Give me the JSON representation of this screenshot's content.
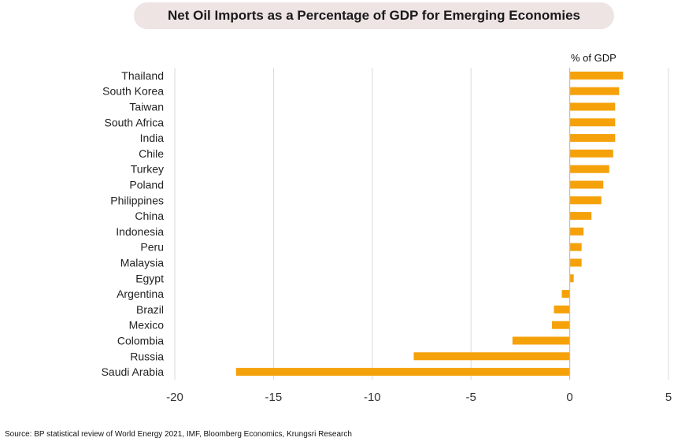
{
  "title": "Net Oil Imports as a Percentage of GDP for Emerging Economies",
  "source": "Source: BP statistical review of World Energy 2021, IMF, Bloomberg Economics, Krungsri Research",
  "colors": {
    "bar": "#F5A10A",
    "grid": "#d9d9d9",
    "axis": "#bfbfbf"
  },
  "chart_data": {
    "type": "bar",
    "orientation": "horizontal",
    "categories": [
      "Thailand",
      "South Korea",
      "Taiwan",
      "South Africa",
      "India",
      "Chile",
      "Turkey",
      "Poland",
      "Philippines",
      "China",
      "Indonesia",
      "Peru",
      "Malaysia",
      "Egypt",
      "Argentina",
      "Brazil",
      "Mexico",
      "Colombia",
      "Russia",
      "Saudi Arabia"
    ],
    "values": [
      2.7,
      2.5,
      2.3,
      2.3,
      2.3,
      2.2,
      2.0,
      1.7,
      1.6,
      1.1,
      0.7,
      0.6,
      0.6,
      0.2,
      -0.4,
      -0.8,
      -0.9,
      -2.9,
      -7.9,
      -16.9
    ],
    "xlabel": "% of GDP",
    "ylabel": "",
    "xlim": [
      -20,
      5
    ],
    "xticks": [
      -20,
      -15,
      -10,
      -5,
      0,
      5
    ],
    "grid": true,
    "legend": "none"
  }
}
